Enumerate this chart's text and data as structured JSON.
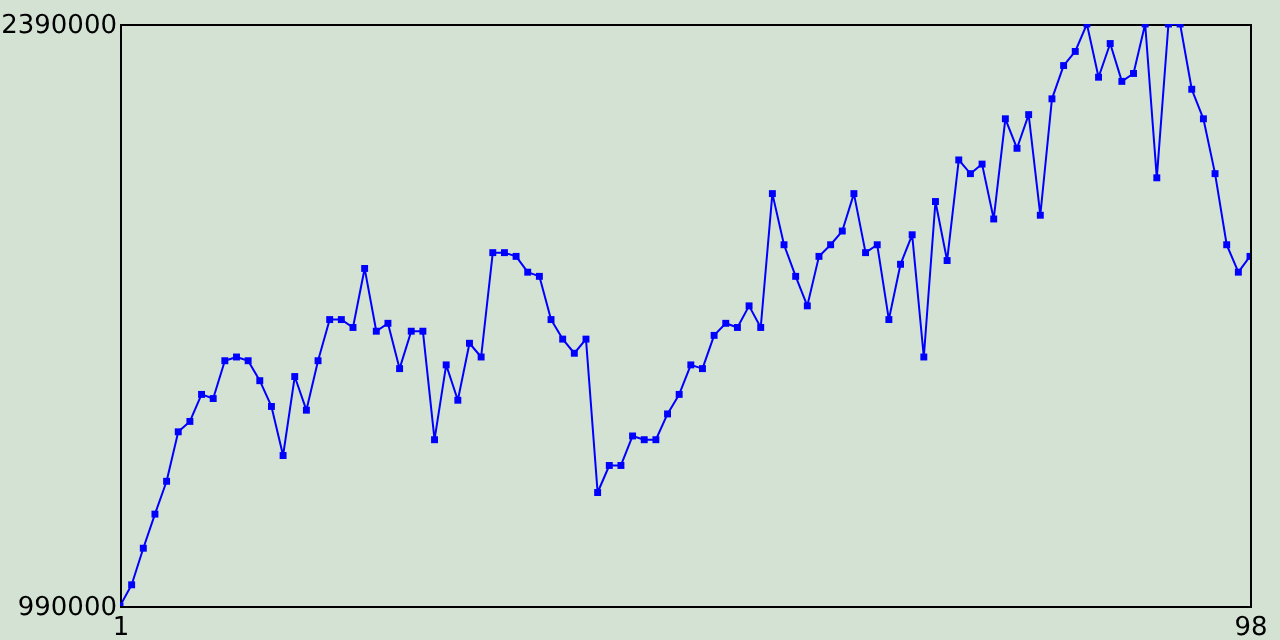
{
  "chart_data": {
    "type": "line",
    "x": [
      1,
      2,
      3,
      4,
      5,
      6,
      7,
      8,
      9,
      10,
      11,
      12,
      13,
      14,
      15,
      16,
      17,
      18,
      19,
      20,
      21,
      22,
      23,
      24,
      25,
      26,
      27,
      28,
      29,
      30,
      31,
      32,
      33,
      34,
      35,
      36,
      37,
      38,
      39,
      40,
      41,
      42,
      43,
      44,
      45,
      46,
      47,
      48,
      49,
      50,
      51,
      52,
      53,
      54,
      55,
      56,
      57,
      58,
      59,
      60,
      61,
      62,
      63,
      64,
      65,
      66,
      67,
      68,
      69,
      70,
      71,
      72,
      73,
      74,
      75,
      76,
      77,
      78,
      79,
      80,
      81,
      82,
      83,
      84,
      85,
      86,
      87,
      88,
      89,
      90,
      91,
      92,
      93,
      94,
      95,
      96,
      97,
      98
    ],
    "series": [
      {
        "color": "#0000ff",
        "values": [
          990000,
          1041000,
          1129000,
          1211000,
          1290000,
          1409000,
          1434000,
          1499000,
          1489000,
          1580000,
          1589000,
          1580000,
          1532000,
          1470000,
          1352000,
          1542000,
          1461000,
          1580000,
          1679000,
          1679000,
          1660000,
          1802000,
          1651000,
          1670000,
          1561000,
          1651000,
          1651000,
          1390000,
          1570000,
          1485000,
          1622000,
          1589000,
          1840000,
          1840000,
          1831000,
          1793000,
          1783000,
          1679000,
          1632000,
          1598000,
          1632000,
          1263000,
          1328000,
          1328000,
          1399000,
          1390000,
          1390000,
          1452000,
          1499000,
          1570000,
          1561000,
          1641000,
          1670000,
          1660000,
          1712000,
          1660000,
          1982000,
          1859000,
          1783000,
          1712000,
          1831000,
          1859000,
          1892000,
          1982000,
          1840000,
          1859000,
          1679000,
          1812000,
          1883000,
          1589000,
          1963000,
          1821000,
          2063000,
          2030000,
          2053000,
          1921000,
          2162000,
          2091000,
          2172000,
          1930000,
          2210000,
          2290000,
          2324000,
          2390000,
          2262000,
          2343000,
          2252000,
          2271000,
          2390000,
          2020000,
          2390000,
          2390000,
          2233000,
          2162000,
          2030000,
          1859000,
          1793000,
          1831000
        ]
      }
    ],
    "xlim": [
      1,
      98
    ],
    "xticks": [
      1,
      98
    ],
    "ylim": [
      990000,
      2390000
    ],
    "yticks": [
      990000,
      2390000
    ],
    "grid": false,
    "legend": false,
    "marker": "square",
    "line_style": "solid"
  }
}
